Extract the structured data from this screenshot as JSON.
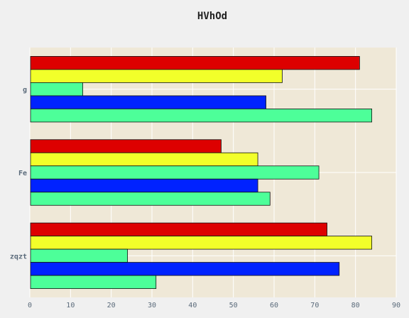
{
  "chart_data": {
    "type": "bar",
    "orientation": "horizontal",
    "title": "HVhOd",
    "xlabel": "",
    "ylabel": "",
    "xlim": [
      0,
      90
    ],
    "x_ticks": [
      0,
      10,
      20,
      30,
      40,
      50,
      60,
      70,
      80,
      90
    ],
    "categories": [
      "g",
      "Fe",
      "zqzt"
    ],
    "grid": true,
    "legend": "none",
    "series": [
      {
        "color": "#dd0000",
        "values": [
          81,
          47,
          73
        ]
      },
      {
        "color": "#f2ff2a",
        "values": [
          62,
          56,
          84
        ]
      },
      {
        "color": "#4dff99",
        "values": [
          13,
          71,
          24
        ]
      },
      {
        "color": "#0022ff",
        "values": [
          58,
          56,
          76
        ]
      },
      {
        "color": "#4dff99",
        "values": [
          84,
          59,
          31
        ]
      }
    ]
  },
  "colors": {
    "page_background": "#f0f0f0",
    "plot_background": "#efe8d7",
    "grid": "#ffffff",
    "bar_stroke": "#111111"
  }
}
